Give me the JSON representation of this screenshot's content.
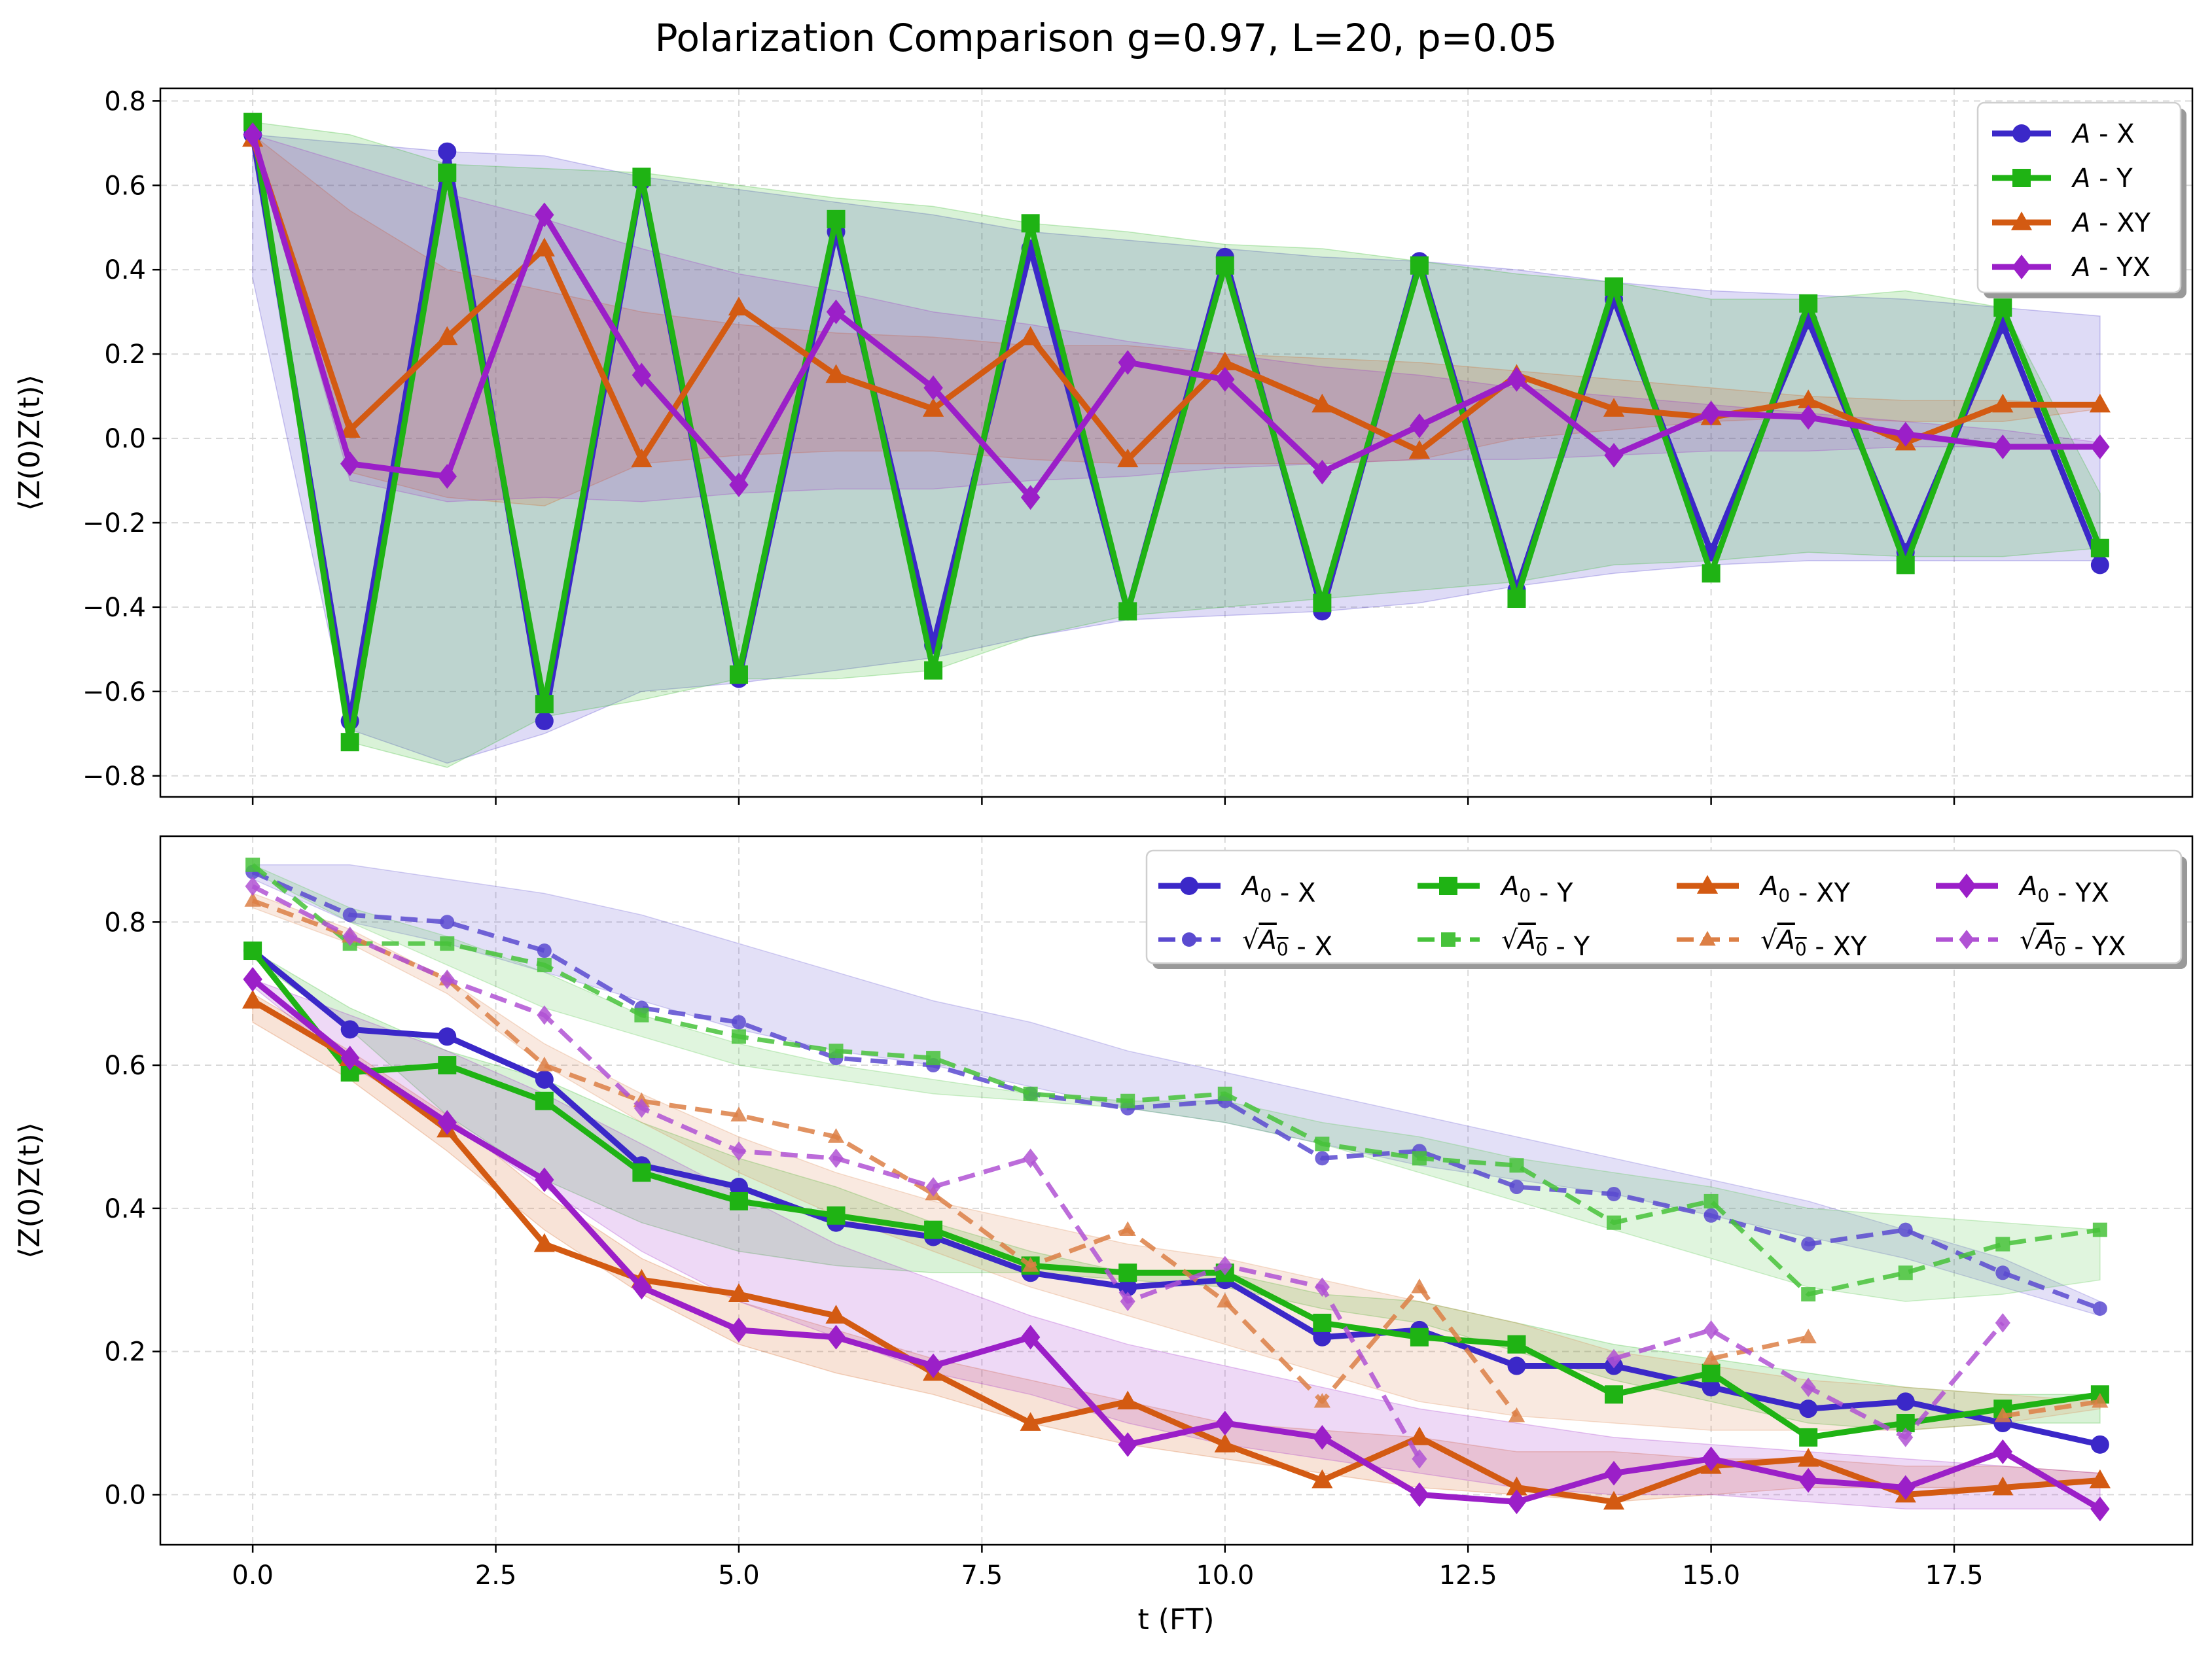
{
  "chart_data": [
    {
      "type": "line",
      "title": "Polarization Comparison g=0.97, L=20, p=0.05",
      "xlabel": "",
      "ylabel": "⟨Z(0)Z(t)⟩",
      "xlim": [
        -0.95,
        19.95
      ],
      "ylim": [
        -0.85,
        0.83
      ],
      "xticks": [
        0,
        2.5,
        5,
        7.5,
        10,
        12.5,
        15,
        17.5
      ],
      "xticklabels": [
        "",
        "",
        "",
        "",
        "",
        "",
        "",
        ""
      ],
      "yticks": [
        -0.8,
        -0.6,
        -0.4,
        -0.2,
        0.0,
        0.2,
        0.4,
        0.6,
        0.8
      ],
      "yticklabels": [
        "−0.8",
        "−0.6",
        "−0.4",
        "−0.2",
        "0.0",
        "0.2",
        "0.4",
        "0.6",
        "0.8"
      ],
      "grid": true,
      "legend_position": "top-right",
      "legend_columns": 1,
      "x": [
        0,
        1,
        2,
        3,
        4,
        5,
        6,
        7,
        8,
        9,
        10,
        11,
        12,
        13,
        14,
        15,
        16,
        17,
        18,
        19
      ],
      "series": [
        {
          "name": "A - X",
          "label_main": "A",
          "label_sub": "",
          "label_suffix": " - X",
          "sqrt": false,
          "color": "#3b28c8",
          "marker": "circle",
          "dashed": false,
          "values": [
            0.72,
            -0.67,
            0.68,
            -0.67,
            0.61,
            -0.57,
            0.49,
            -0.49,
            0.45,
            -0.41,
            0.43,
            -0.41,
            0.42,
            -0.36,
            0.33,
            -0.27,
            0.28,
            -0.27,
            0.27,
            -0.3
          ],
          "band_low": [
            0.38,
            -0.69,
            -0.77,
            -0.7,
            -0.6,
            -0.58,
            -0.55,
            -0.52,
            -0.47,
            -0.43,
            -0.42,
            -0.41,
            -0.39,
            -0.35,
            -0.32,
            -0.3,
            -0.29,
            -0.29,
            -0.29,
            -0.29
          ],
          "band_high": [
            0.72,
            0.7,
            0.68,
            0.67,
            0.62,
            0.59,
            0.56,
            0.53,
            0.49,
            0.47,
            0.45,
            0.43,
            0.42,
            0.4,
            0.37,
            0.35,
            0.34,
            0.33,
            0.31,
            0.29
          ]
        },
        {
          "name": "A - Y",
          "label_main": "A",
          "label_sub": "",
          "label_suffix": " - Y",
          "sqrt": false,
          "color": "#1fb314",
          "marker": "square",
          "dashed": false,
          "values": [
            0.75,
            -0.72,
            0.63,
            -0.63,
            0.62,
            -0.56,
            0.52,
            -0.55,
            0.51,
            -0.41,
            0.41,
            -0.39,
            0.41,
            -0.38,
            0.36,
            -0.32,
            0.32,
            -0.3,
            0.31,
            -0.26
          ],
          "band_low": [
            0.68,
            -0.72,
            -0.78,
            -0.66,
            -0.62,
            -0.57,
            -0.57,
            -0.55,
            -0.47,
            -0.42,
            -0.4,
            -0.38,
            -0.36,
            -0.34,
            -0.3,
            -0.29,
            -0.27,
            -0.28,
            -0.28,
            -0.26
          ],
          "band_high": [
            0.75,
            0.72,
            0.65,
            0.64,
            0.63,
            0.6,
            0.57,
            0.55,
            0.51,
            0.49,
            0.46,
            0.45,
            0.42,
            0.39,
            0.37,
            0.33,
            0.33,
            0.35,
            0.31,
            -0.13
          ]
        },
        {
          "name": "A - XY",
          "label_main": "A",
          "label_sub": "",
          "label_suffix": " - XY",
          "sqrt": false,
          "color": "#d35a12",
          "marker": "triangle",
          "dashed": false,
          "values": [
            0.71,
            0.02,
            0.24,
            0.45,
            -0.05,
            0.31,
            0.15,
            0.07,
            0.24,
            -0.05,
            0.18,
            0.08,
            -0.03,
            0.15,
            0.07,
            0.05,
            0.09,
            -0.01,
            0.08,
            0.08
          ],
          "band_low": [
            0.7,
            -0.08,
            -0.14,
            -0.16,
            -0.06,
            -0.04,
            -0.03,
            -0.03,
            -0.05,
            -0.06,
            -0.06,
            -0.06,
            -0.05,
            0.0,
            0.02,
            0.04,
            0.05,
            0.04,
            0.04,
            0.07
          ],
          "band_high": [
            0.72,
            0.54,
            0.4,
            0.35,
            0.3,
            0.27,
            0.25,
            0.24,
            0.22,
            0.22,
            0.2,
            0.19,
            0.18,
            0.16,
            0.14,
            0.12,
            0.1,
            0.09,
            0.09,
            0.08
          ]
        },
        {
          "name": "A - YX",
          "label_main": "A",
          "label_sub": "",
          "label_suffix": " - YX",
          "sqrt": false,
          "color": "#9b1fc8",
          "marker": "diamond",
          "dashed": false,
          "values": [
            0.72,
            -0.06,
            -0.09,
            0.53,
            0.15,
            -0.11,
            0.3,
            0.12,
            -0.14,
            0.18,
            0.14,
            -0.08,
            0.03,
            0.14,
            -0.04,
            0.06,
            0.05,
            0.01,
            -0.02,
            -0.02
          ],
          "band_low": [
            0.72,
            -0.1,
            -0.15,
            -0.14,
            -0.15,
            -0.13,
            -0.12,
            -0.12,
            -0.1,
            -0.09,
            -0.07,
            -0.06,
            -0.05,
            -0.05,
            -0.04,
            -0.03,
            -0.03,
            -0.02,
            -0.02,
            -0.02
          ],
          "band_high": [
            0.72,
            0.65,
            0.58,
            0.52,
            0.45,
            0.39,
            0.35,
            0.3,
            0.27,
            0.23,
            0.2,
            0.17,
            0.15,
            0.12,
            0.1,
            0.08,
            0.06,
            0.04,
            0.02,
            -0.01
          ]
        }
      ]
    },
    {
      "type": "line",
      "title": "",
      "xlabel": "t (FT)",
      "ylabel": "⟨Z(0)Z(t)⟩",
      "xlim": [
        -0.95,
        19.95
      ],
      "ylim": [
        -0.07,
        0.92
      ],
      "xticks": [
        0,
        2.5,
        5,
        7.5,
        10,
        12.5,
        15,
        17.5
      ],
      "xticklabels": [
        "0.0",
        "2.5",
        "5.0",
        "7.5",
        "10.0",
        "12.5",
        "15.0",
        "17.5"
      ],
      "yticks": [
        0.0,
        0.2,
        0.4,
        0.6,
        0.8
      ],
      "yticklabels": [
        "0.0",
        "0.2",
        "0.4",
        "0.6",
        "0.8"
      ],
      "grid": true,
      "legend_position": "top-right",
      "legend_columns": 4,
      "x": [
        0,
        1,
        2,
        3,
        4,
        5,
        6,
        7,
        8,
        9,
        10,
        11,
        12,
        13,
        14,
        15,
        16,
        17,
        18,
        19
      ],
      "series": [
        {
          "name": "A0 - X",
          "label_main": "A",
          "label_sub": "0",
          "label_suffix": " - X",
          "sqrt": false,
          "color": "#3b28c8",
          "marker": "circle",
          "dashed": false,
          "values": [
            0.76,
            0.65,
            0.64,
            0.58,
            0.46,
            0.43,
            0.38,
            0.36,
            0.31,
            0.29,
            0.3,
            0.22,
            0.23,
            0.18,
            0.18,
            0.15,
            0.12,
            0.13,
            0.1,
            0.07
          ]
        },
        {
          "name": "A0 - Y",
          "label_main": "A",
          "label_sub": "0",
          "label_suffix": " - Y",
          "sqrt": false,
          "color": "#1fb314",
          "marker": "square",
          "dashed": false,
          "values": [
            0.76,
            0.59,
            0.6,
            0.55,
            0.45,
            0.41,
            0.39,
            0.37,
            0.32,
            0.31,
            0.31,
            0.24,
            0.22,
            0.21,
            0.14,
            0.17,
            0.08,
            0.1,
            0.12,
            0.14
          ],
          "band_low": [
            0.75,
            0.65,
            0.53,
            0.44,
            0.38,
            0.34,
            0.32,
            0.31,
            0.31,
            0.3,
            0.29,
            0.26,
            0.24,
            0.2,
            0.16,
            0.13,
            0.1,
            0.09,
            0.1,
            0.1
          ],
          "band_high": [
            0.76,
            0.68,
            0.62,
            0.58,
            0.52,
            0.47,
            0.43,
            0.38,
            0.34,
            0.31,
            0.31,
            0.28,
            0.27,
            0.24,
            0.21,
            0.19,
            0.17,
            0.15,
            0.14,
            0.14
          ]
        },
        {
          "name": "A0 - XY",
          "label_main": "A",
          "label_sub": "0",
          "label_suffix": " - XY",
          "sqrt": false,
          "color": "#d35a12",
          "marker": "triangle",
          "dashed": false,
          "values": [
            0.69,
            0.61,
            0.51,
            0.35,
            0.3,
            0.28,
            0.25,
            0.17,
            0.1,
            0.13,
            0.07,
            0.02,
            0.08,
            0.01,
            -0.01,
            0.04,
            0.05,
            0.0,
            0.01,
            0.02
          ],
          "band_low": [
            0.66,
            0.58,
            0.48,
            0.37,
            0.28,
            0.21,
            0.17,
            0.14,
            0.1,
            0.07,
            0.05,
            0.03,
            0.01,
            0.0,
            -0.01,
            0.0,
            0.01,
            0.01,
            0.01,
            0.02
          ],
          "band_high": [
            0.7,
            0.62,
            0.53,
            0.42,
            0.33,
            0.27,
            0.23,
            0.19,
            0.16,
            0.13,
            0.1,
            0.09,
            0.08,
            0.06,
            0.06,
            0.05,
            0.05,
            0.04,
            0.04,
            0.03
          ]
        },
        {
          "name": "A0 - YX",
          "label_main": "A",
          "label_sub": "0",
          "label_suffix": " - YX",
          "sqrt": false,
          "color": "#9b1fc8",
          "marker": "diamond",
          "dashed": false,
          "values": [
            0.72,
            0.61,
            0.52,
            0.44,
            0.29,
            0.23,
            0.22,
            0.18,
            0.22,
            0.07,
            0.1,
            0.08,
            0.0,
            -0.01,
            0.03,
            0.05,
            0.02,
            0.01,
            0.06,
            -0.02
          ],
          "band_low": [
            0.71,
            0.6,
            0.52,
            0.43,
            0.34,
            0.27,
            0.22,
            0.17,
            0.14,
            0.1,
            0.07,
            0.05,
            0.03,
            0.01,
            0.0,
            0.0,
            -0.01,
            -0.02,
            -0.02,
            -0.02
          ],
          "band_high": [
            0.72,
            0.67,
            0.62,
            0.56,
            0.49,
            0.42,
            0.35,
            0.3,
            0.25,
            0.21,
            0.18,
            0.15,
            0.12,
            0.1,
            0.08,
            0.07,
            0.06,
            0.05,
            0.04,
            0.03
          ]
        },
        {
          "name": "√A0 - X",
          "label_main": "A",
          "label_sub": "0",
          "label_suffix": " - X",
          "sqrt": true,
          "color": "#5a4ad0",
          "marker": "circle",
          "dashed": true,
          "values": [
            0.87,
            0.81,
            0.8,
            0.76,
            0.68,
            0.66,
            0.61,
            0.6,
            0.56,
            0.54,
            0.55,
            0.47,
            0.48,
            0.43,
            0.42,
            0.39,
            0.35,
            0.37,
            0.31,
            0.26
          ],
          "band_low": [
            0.86,
            0.8,
            0.77,
            0.73,
            0.69,
            0.65,
            0.62,
            0.6,
            0.57,
            0.54,
            0.52,
            0.49,
            0.46,
            0.44,
            0.42,
            0.39,
            0.36,
            0.33,
            0.29,
            0.25
          ],
          "band_high": [
            0.88,
            0.88,
            0.86,
            0.84,
            0.81,
            0.77,
            0.73,
            0.69,
            0.66,
            0.62,
            0.59,
            0.56,
            0.53,
            0.5,
            0.47,
            0.44,
            0.41,
            0.37,
            0.33,
            0.27
          ]
        },
        {
          "name": "√A0 - Y",
          "label_main": "A",
          "label_sub": "0",
          "label_suffix": " - Y",
          "sqrt": true,
          "color": "#46c23a",
          "marker": "square",
          "dashed": true,
          "values": [
            0.88,
            0.77,
            0.77,
            0.74,
            0.67,
            0.64,
            0.62,
            0.61,
            0.56,
            0.55,
            0.56,
            0.49,
            0.47,
            0.46,
            0.38,
            0.41,
            0.28,
            0.31,
            0.35,
            0.37
          ],
          "band_low": [
            0.87,
            0.8,
            0.74,
            0.68,
            0.64,
            0.6,
            0.58,
            0.56,
            0.55,
            0.54,
            0.52,
            0.49,
            0.45,
            0.41,
            0.37,
            0.33,
            0.29,
            0.27,
            0.28,
            0.3
          ],
          "band_high": [
            0.88,
            0.82,
            0.78,
            0.73,
            0.67,
            0.63,
            0.6,
            0.58,
            0.56,
            0.55,
            0.55,
            0.52,
            0.5,
            0.47,
            0.45,
            0.43,
            0.4,
            0.39,
            0.38,
            0.37
          ]
        },
        {
          "name": "√A0 - XY",
          "label_main": "A",
          "label_sub": "0",
          "label_suffix": " - XY",
          "sqrt": true,
          "color": "#dc7f45",
          "marker": "triangle",
          "dashed": true,
          "values": [
            0.83,
            0.78,
            0.72,
            0.6,
            0.55,
            0.53,
            0.5,
            0.42,
            0.32,
            0.37,
            0.27,
            0.13,
            0.29,
            0.11,
            null,
            0.19,
            0.22,
            null,
            0.11,
            0.13
          ],
          "band_low": [
            0.82,
            0.77,
            0.7,
            0.6,
            0.52,
            0.45,
            0.39,
            0.34,
            0.29,
            0.25,
            0.21,
            0.17,
            0.13,
            0.11,
            0.1,
            0.09,
            0.09,
            0.09,
            0.1,
            0.12
          ],
          "band_high": [
            0.84,
            0.79,
            0.72,
            0.63,
            0.56,
            0.5,
            0.45,
            0.41,
            0.38,
            0.35,
            0.33,
            0.3,
            0.27,
            0.24,
            0.2,
            0.18,
            0.16,
            0.15,
            0.14,
            0.13
          ]
        },
        {
          "name": "√A0 - YX",
          "label_main": "A",
          "label_sub": "0",
          "label_suffix": " - YX",
          "sqrt": true,
          "color": "#b052d4",
          "marker": "diamond",
          "dashed": true,
          "values": [
            0.85,
            0.78,
            0.72,
            0.67,
            0.54,
            0.48,
            0.47,
            0.43,
            0.47,
            0.27,
            0.32,
            0.29,
            0.05,
            null,
            0.19,
            0.23,
            0.15,
            0.08,
            0.24,
            null
          ]
        }
      ]
    }
  ]
}
